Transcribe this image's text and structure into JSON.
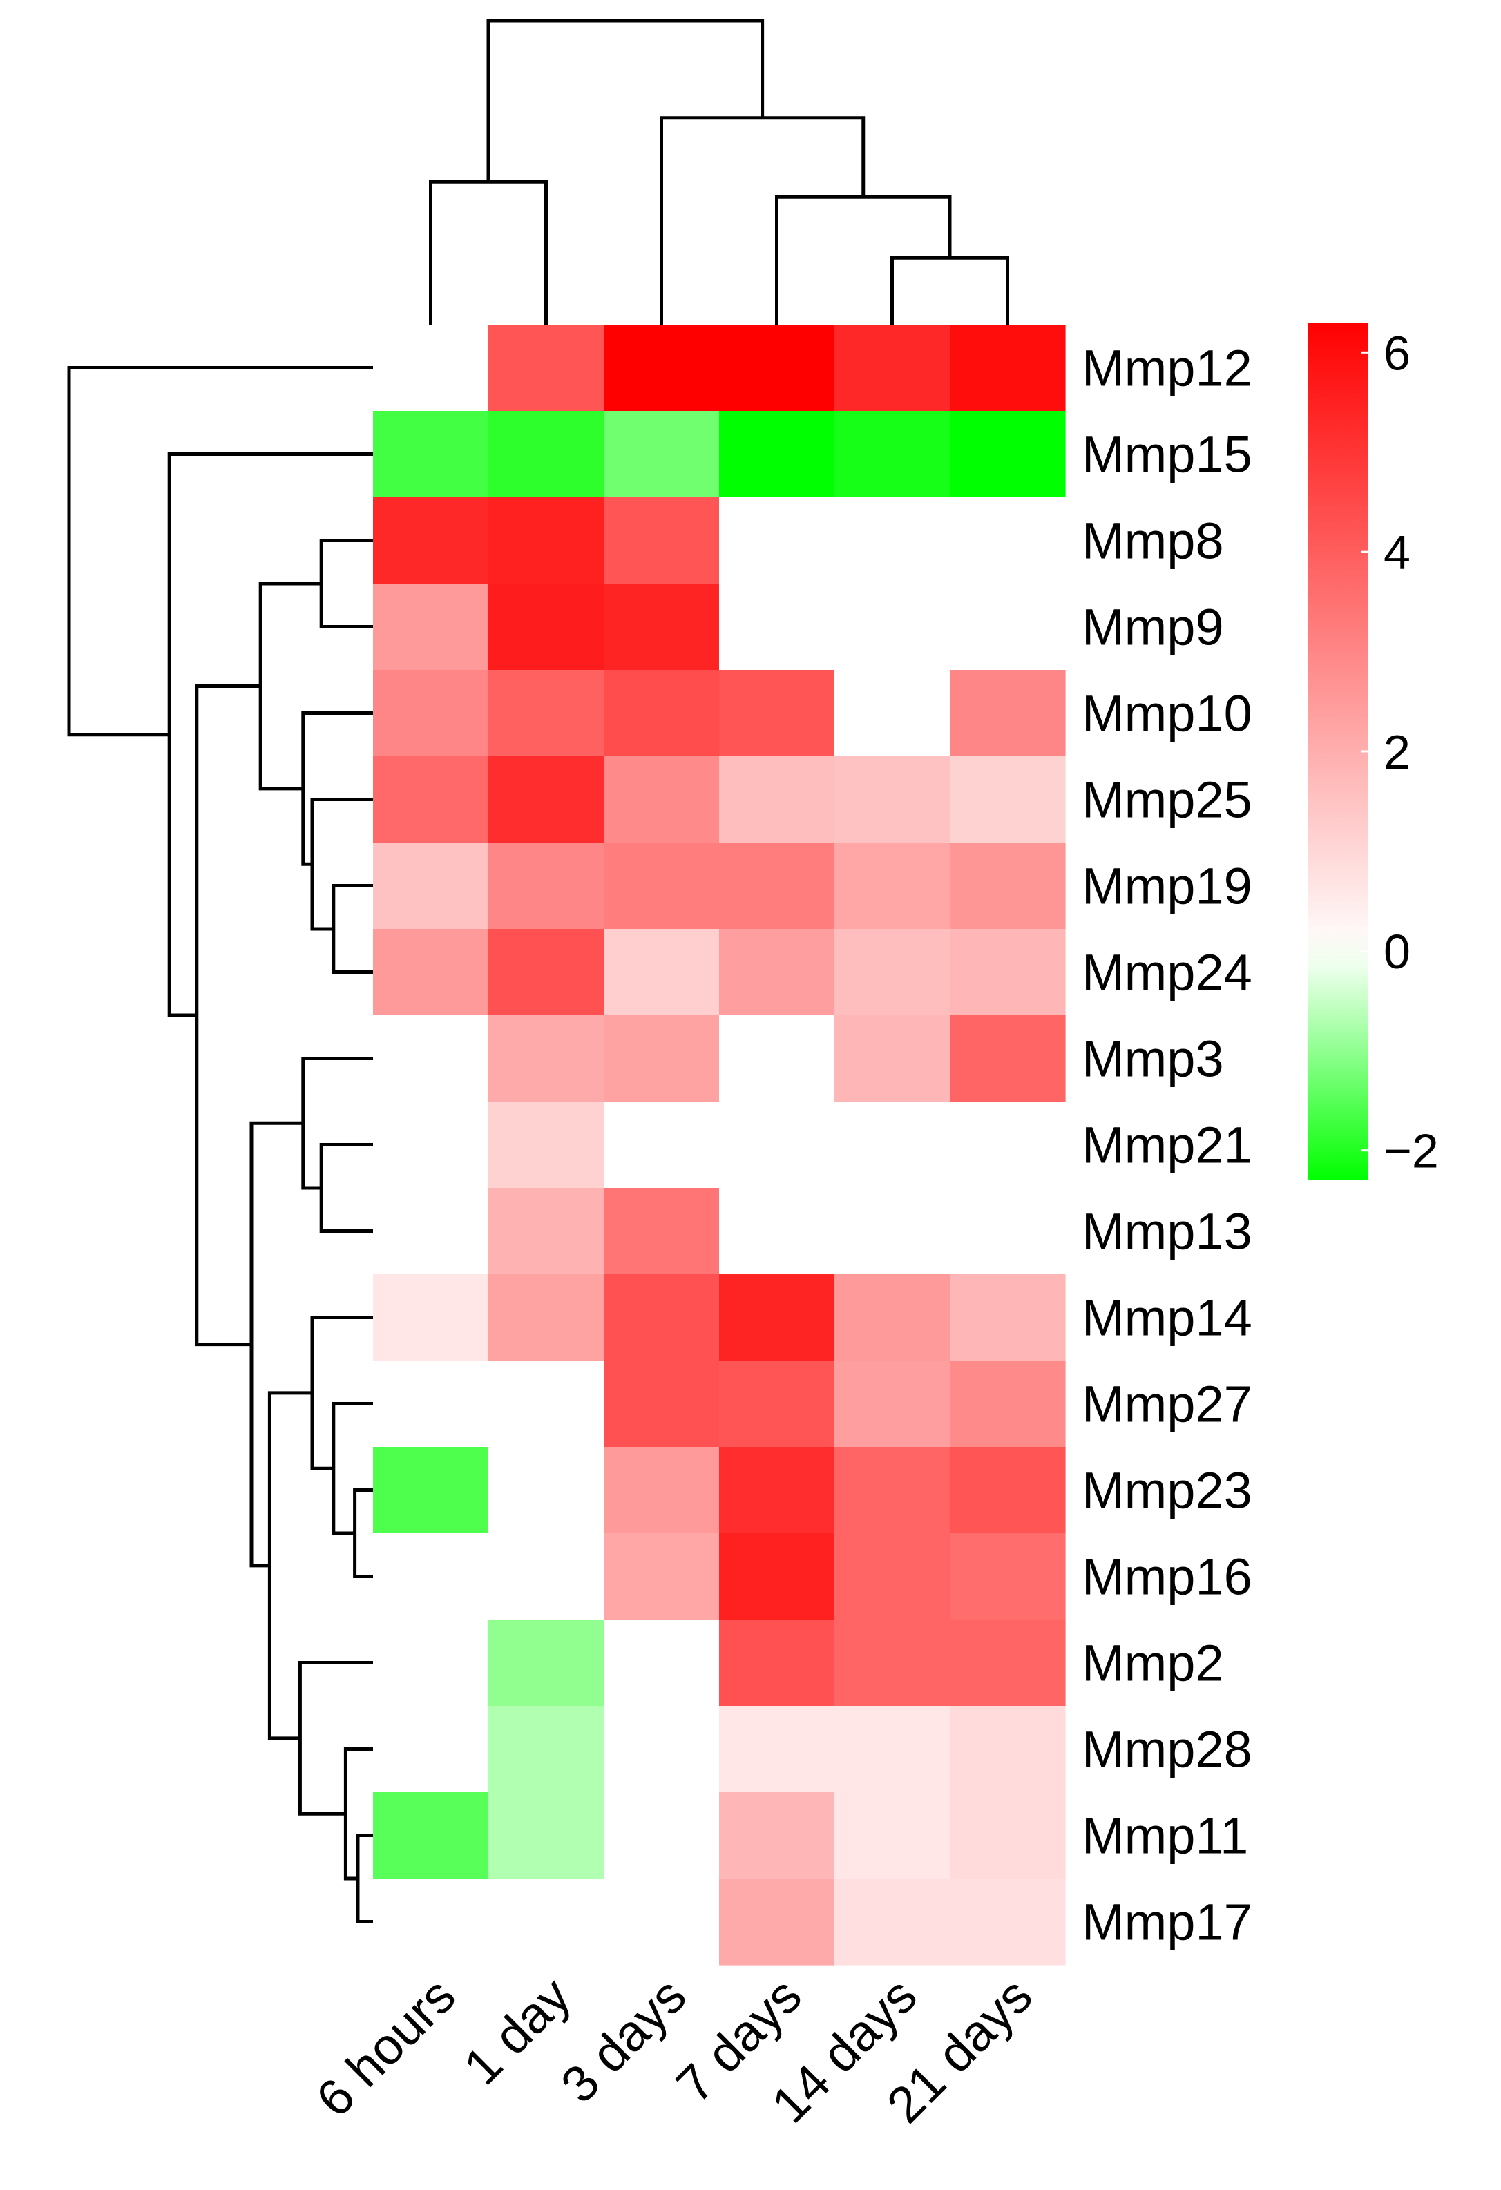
{
  "chart_data": {
    "type": "heatmap",
    "title": "",
    "columns": [
      "6 hours",
      "1 day",
      "3 days",
      "7 days",
      "14 days",
      "21 days"
    ],
    "rows": [
      "Mmp12",
      "Mmp15",
      "Mmp8",
      "Mmp9",
      "Mmp10",
      "Mmp25",
      "Mmp19",
      "Mmp24",
      "Mmp3",
      "Mmp21",
      "Mmp13",
      "Mmp14",
      "Mmp27",
      "Mmp23",
      "Mmp16",
      "Mmp2",
      "Mmp28",
      "Mmp11",
      "Mmp17"
    ],
    "values": [
      [
        0,
        4.2,
        6.3,
        6.3,
        5.3,
        6.0
      ],
      [
        -1.7,
        -1.9,
        -1.3,
        -2.3,
        -2.1,
        -2.3
      ],
      [
        5.3,
        5.5,
        4.2,
        0,
        0,
        0
      ],
      [
        2.5,
        5.6,
        5.4,
        0,
        0,
        0
      ],
      [
        3.0,
        3.9,
        4.4,
        4.2,
        0,
        3.0
      ],
      [
        3.7,
        5.2,
        2.9,
        1.6,
        1.5,
        1.1
      ],
      [
        1.5,
        3.0,
        3.2,
        3.2,
        2.2,
        2.6
      ],
      [
        2.5,
        4.3,
        1.2,
        2.4,
        1.6,
        1.8
      ],
      [
        0,
        2.1,
        2.3,
        0,
        1.8,
        3.8
      ],
      [
        0,
        1.1,
        0,
        0,
        0,
        0
      ],
      [
        0,
        1.9,
        3.4,
        0,
        0,
        0
      ],
      [
        0.6,
        2.3,
        4.3,
        5.4,
        2.5,
        1.8
      ],
      [
        0,
        0,
        4.3,
        4.2,
        2.4,
        2.9
      ],
      [
        -1.6,
        0,
        2.5,
        5.2,
        3.8,
        4.2
      ],
      [
        0,
        0,
        2.2,
        5.5,
        3.8,
        3.6
      ],
      [
        0,
        -1.0,
        0,
        4.3,
        3.8,
        3.8
      ],
      [
        0,
        -0.7,
        0,
        0.6,
        0.6,
        0.9
      ],
      [
        -1.5,
        -0.7,
        0,
        1.8,
        0.6,
        0.9
      ],
      [
        0,
        0,
        0,
        2.1,
        0.8,
        0.8
      ]
    ],
    "legend": {
      "range": [
        -2.3,
        6.3
      ],
      "ticks": [
        "6",
        "4",
        "2",
        "0",
        "−2"
      ],
      "tick_values": [
        6,
        4,
        2,
        0,
        -2
      ],
      "colors": {
        "low": "#00ff00",
        "mid": "#ffffff",
        "high": "#ff0000"
      }
    },
    "column_dendrogram": {
      "leaves": [
        "6 hours",
        "1 day",
        "3 days",
        "7 days",
        "14 days",
        "21 days"
      ],
      "merges": [
        {
          "left": "leaf:4",
          "right": "leaf:5",
          "height": 0.22
        },
        {
          "left": "leaf:3",
          "right": "node:0",
          "height": 0.42
        },
        {
          "left": "leaf:2",
          "right": "node:1",
          "height": 0.68
        },
        {
          "left": "leaf:0",
          "right": "leaf:1",
          "height": 0.47
        },
        {
          "left": "node:3",
          "right": "node:2",
          "height": 1.0
        }
      ]
    },
    "row_dendrogram": {
      "leaves": [
        "Mmp12",
        "Mmp15",
        "Mmp8",
        "Mmp9",
        "Mmp10",
        "Mmp25",
        "Mmp19",
        "Mmp24",
        "Mmp3",
        "Mmp21",
        "Mmp13",
        "Mmp14",
        "Mmp27",
        "Mmp23",
        "Mmp16",
        "Mmp2",
        "Mmp28",
        "Mmp11",
        "Mmp17"
      ],
      "merges": [
        {
          "left": "leaf:2",
          "right": "leaf:3",
          "height": 0.17
        },
        {
          "left": "leaf:6",
          "right": "leaf:7",
          "height": 0.13
        },
        {
          "left": "leaf:5",
          "right": "node:1",
          "height": 0.2
        },
        {
          "left": "leaf:4",
          "right": "node:2",
          "height": 0.23
        },
        {
          "left": "node:0",
          "right": "node:3",
          "height": 0.37
        },
        {
          "left": "leaf:9",
          "right": "leaf:10",
          "height": 0.17
        },
        {
          "left": "leaf:8",
          "right": "node:5",
          "height": 0.23
        },
        {
          "left": "leaf:13",
          "right": "leaf:14",
          "height": 0.06
        },
        {
          "left": "leaf:12",
          "right": "node:7",
          "height": 0.13
        },
        {
          "left": "leaf:11",
          "right": "node:8",
          "height": 0.2
        },
        {
          "left": "leaf:17",
          "right": "leaf:18",
          "height": 0.05
        },
        {
          "left": "leaf:16",
          "right": "node:10",
          "height": 0.09
        },
        {
          "left": "leaf:15",
          "right": "node:11",
          "height": 0.24
        },
        {
          "left": "node:9",
          "right": "node:12",
          "height": 0.34
        },
        {
          "left": "node:6",
          "right": "node:13",
          "height": 0.4
        },
        {
          "left": "node:4",
          "right": "node:14",
          "height": 0.58
        },
        {
          "left": "leaf:1",
          "right": "node:15",
          "height": 0.67
        },
        {
          "left": "leaf:0",
          "right": "node:16",
          "height": 1.0
        }
      ]
    }
  }
}
